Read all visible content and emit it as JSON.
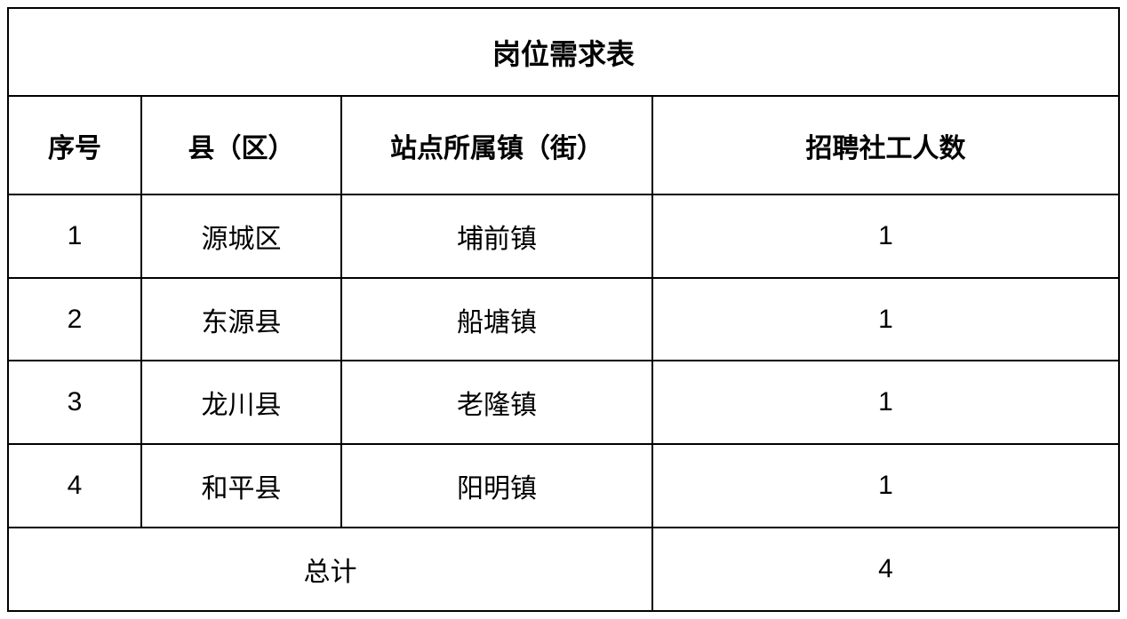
{
  "table": {
    "title": "岗位需求表",
    "columns": [
      "序号",
      "县（区）",
      "站点所属镇（街）",
      "招聘社工人数"
    ],
    "rows": [
      [
        "1",
        "源城区",
        "埔前镇",
        "1"
      ],
      [
        "2",
        "东源县",
        "船塘镇",
        "1"
      ],
      [
        "3",
        "龙川县",
        "老隆镇",
        "1"
      ],
      [
        "4",
        "和平县",
        "阳明镇",
        "1"
      ]
    ],
    "total_label": "总计",
    "total_value": "4",
    "border_color": "#000000",
    "background_color": "#ffffff",
    "text_color": "#000000",
    "title_fontsize": 32,
    "header_fontsize": 30,
    "cell_fontsize": 30,
    "col_widths_pct": [
      12,
      18,
      28,
      42
    ]
  }
}
